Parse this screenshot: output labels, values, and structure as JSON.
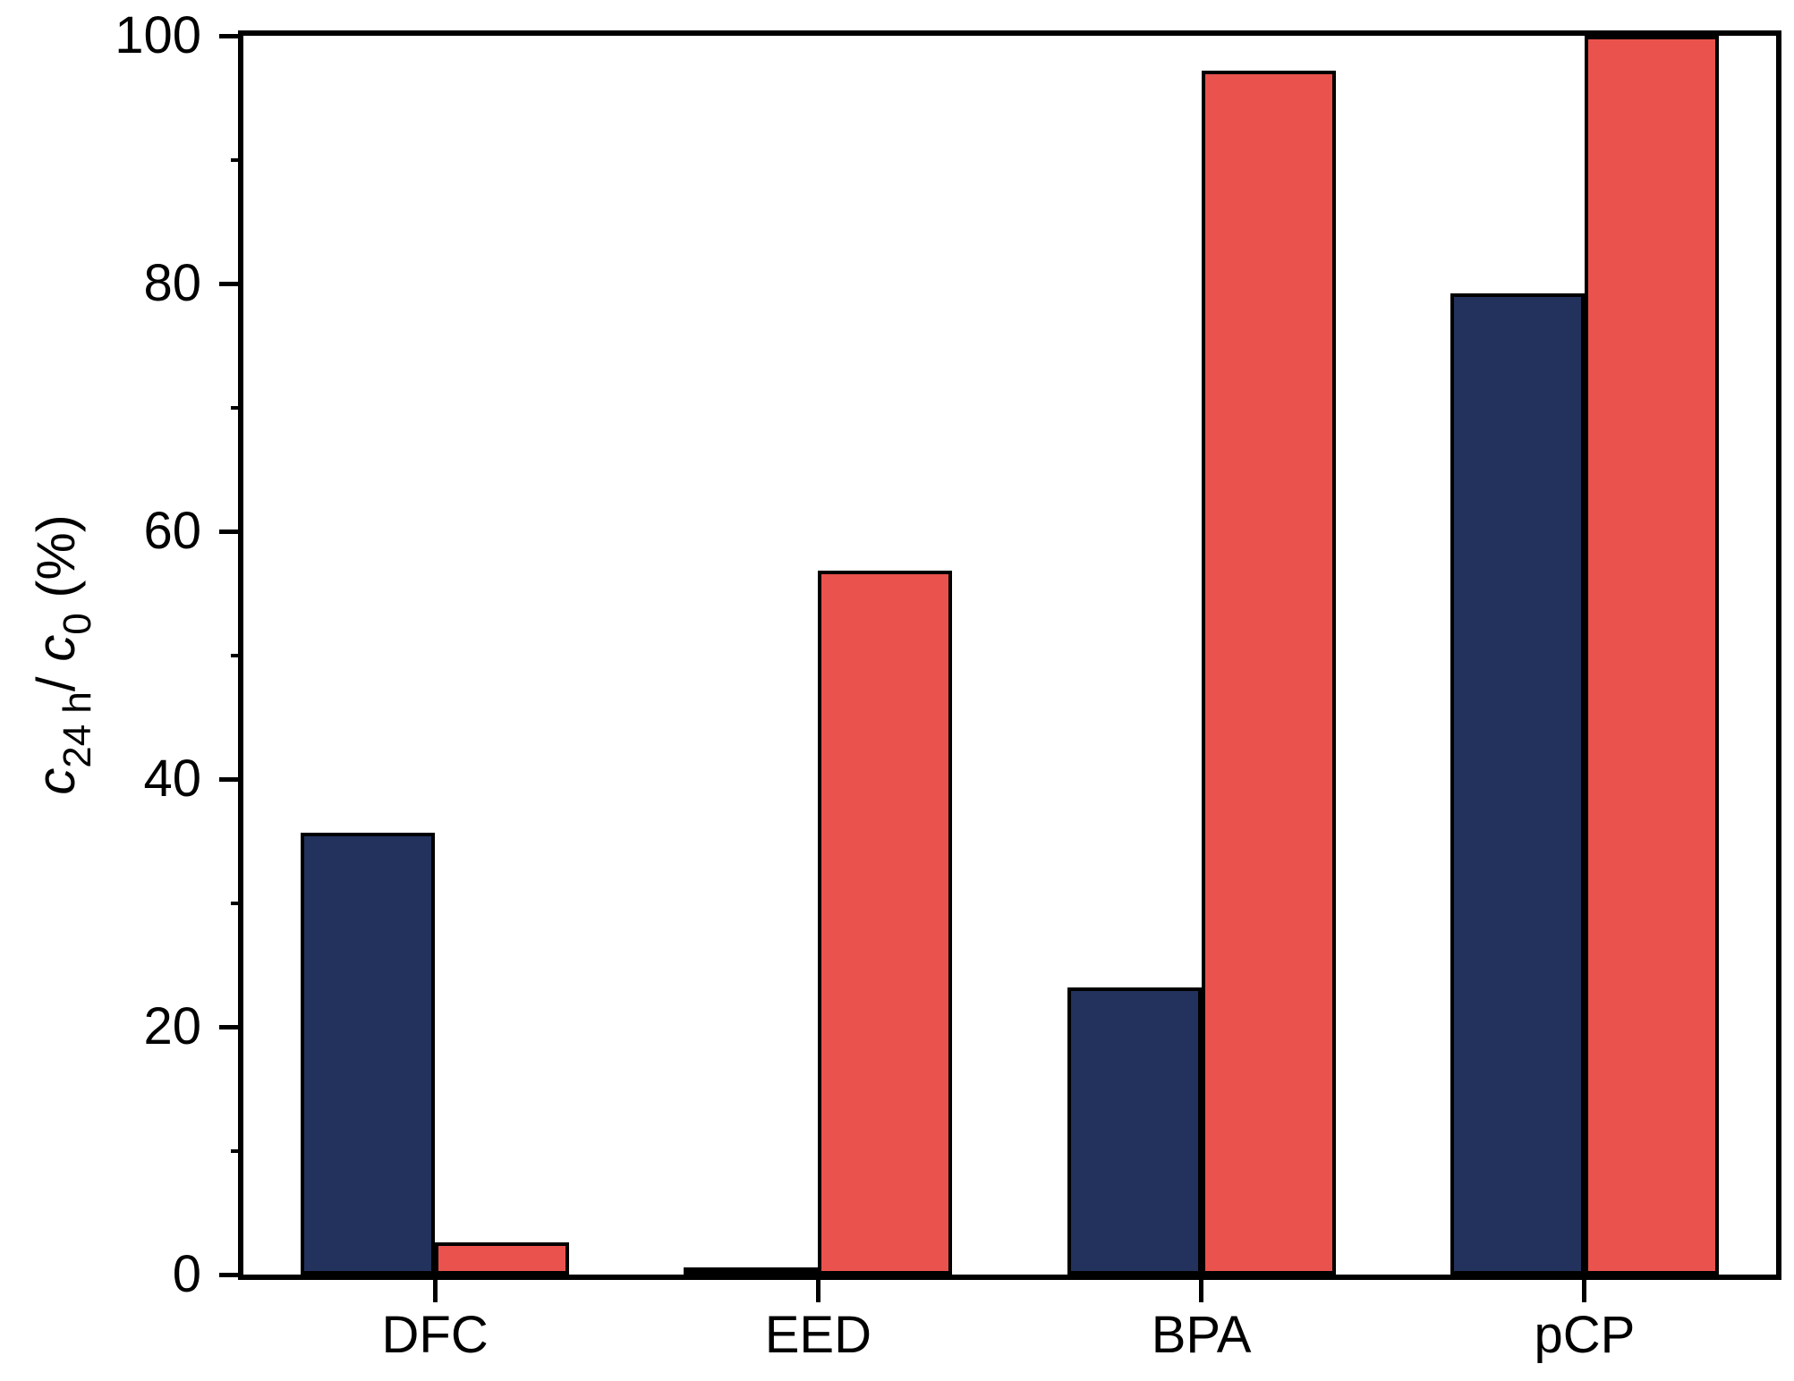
{
  "chart_data": {
    "type": "bar",
    "title": "",
    "xlabel": "",
    "ylabel": "c24 h/ c0 (%)",
    "ylabel_parts": [
      {
        "text": "c",
        "style": "italic"
      },
      {
        "text": "24 h",
        "style": "sub"
      },
      {
        "text": "/ ",
        "style": "normal"
      },
      {
        "text": "c",
        "style": "italic"
      },
      {
        "text": "0",
        "style": "sub"
      },
      {
        "text": " (%)",
        "style": "normal"
      }
    ],
    "categories": [
      "DFC",
      "EED",
      "BPA",
      "pCP"
    ],
    "series": [
      {
        "name": "navy-series",
        "color": "#22325c",
        "values": [
          35.7,
          0.4,
          23.2,
          79.2
        ]
      },
      {
        "name": "red-series",
        "color": "#ea524d",
        "values": [
          2.6,
          56.8,
          97.2,
          100
        ]
      }
    ],
    "ylim": [
      0,
      100
    ],
    "yticks_major": [
      0,
      20,
      40,
      60,
      80,
      100
    ],
    "yticks_minor": [
      10,
      30,
      50,
      70,
      90
    ],
    "grid": false,
    "legend": "none",
    "bar_outline_color": "#000000",
    "axis_color": "#000000",
    "background_color": "#ffffff"
  }
}
